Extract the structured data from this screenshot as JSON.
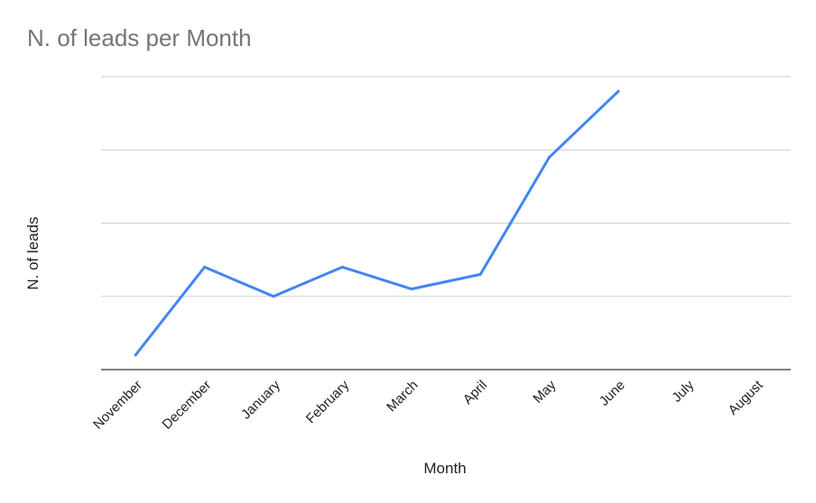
{
  "chart_data": {
    "type": "line",
    "title": "N. of leads per Month",
    "xlabel": "Month",
    "ylabel": "N. of leads",
    "categories": [
      "November",
      "December",
      "January",
      "February",
      "March",
      "April",
      "May",
      "June",
      "July",
      "August"
    ],
    "series": [
      {
        "values": [
          0.2,
          1.4,
          1.0,
          1.4,
          1.1,
          1.3,
          2.9,
          3.8,
          null,
          null
        ],
        "color": "#4285f4"
      }
    ],
    "ylim": [
      0,
      4
    ],
    "y_ticks": [
      0,
      1,
      2,
      3,
      4
    ],
    "y_tick_labels_visible": false,
    "grid": true,
    "legend": "none"
  }
}
